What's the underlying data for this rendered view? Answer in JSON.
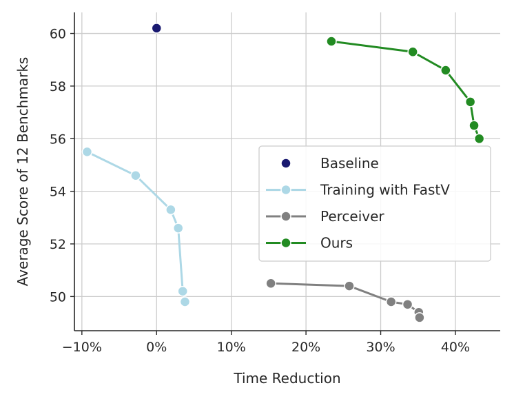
{
  "chart_data": {
    "type": "line",
    "title": "",
    "xlabel": "Time Reduction",
    "ylabel": "Average Score of 12 Benchmarks",
    "xlim": [
      -11,
      46
    ],
    "ylim": [
      48.7,
      60.8
    ],
    "grid": true,
    "legend_position": "center-right",
    "x_ticks": [
      -10,
      0,
      10,
      20,
      30,
      40
    ],
    "x_tick_labels": [
      "−10%",
      "0%",
      "10%",
      "20%",
      "30%",
      "40%"
    ],
    "y_ticks": [
      50,
      52,
      54,
      56,
      58,
      60
    ],
    "y_tick_labels": [
      "50",
      "52",
      "54",
      "56",
      "58",
      "60"
    ],
    "series": [
      {
        "name": "Baseline",
        "color": "#191970",
        "line": false,
        "points": [
          {
            "x": 0,
            "y": 60.2
          }
        ]
      },
      {
        "name": "Training with FastV",
        "color": "#add8e6",
        "line": true,
        "points": [
          {
            "x": -9.3,
            "y": 55.5
          },
          {
            "x": -2.8,
            "y": 54.6
          },
          {
            "x": 1.9,
            "y": 53.3
          },
          {
            "x": 2.9,
            "y": 52.6
          },
          {
            "x": 3.5,
            "y": 50.2
          },
          {
            "x": 3.8,
            "y": 49.8
          }
        ]
      },
      {
        "name": "Perceiver",
        "color": "#808080",
        "line": true,
        "points": [
          {
            "x": 15.3,
            "y": 50.5
          },
          {
            "x": 25.8,
            "y": 50.4
          },
          {
            "x": 31.4,
            "y": 49.8
          },
          {
            "x": 33.6,
            "y": 49.7
          },
          {
            "x": 35.1,
            "y": 49.4
          },
          {
            "x": 35.2,
            "y": 49.2
          }
        ]
      },
      {
        "name": "Ours",
        "color": "#228b22",
        "line": true,
        "points": [
          {
            "x": 23.4,
            "y": 59.7
          },
          {
            "x": 34.3,
            "y": 59.3
          },
          {
            "x": 38.7,
            "y": 58.6
          },
          {
            "x": 42.0,
            "y": 57.4
          },
          {
            "x": 42.5,
            "y": 56.5
          },
          {
            "x": 43.2,
            "y": 56.0
          }
        ]
      }
    ]
  }
}
